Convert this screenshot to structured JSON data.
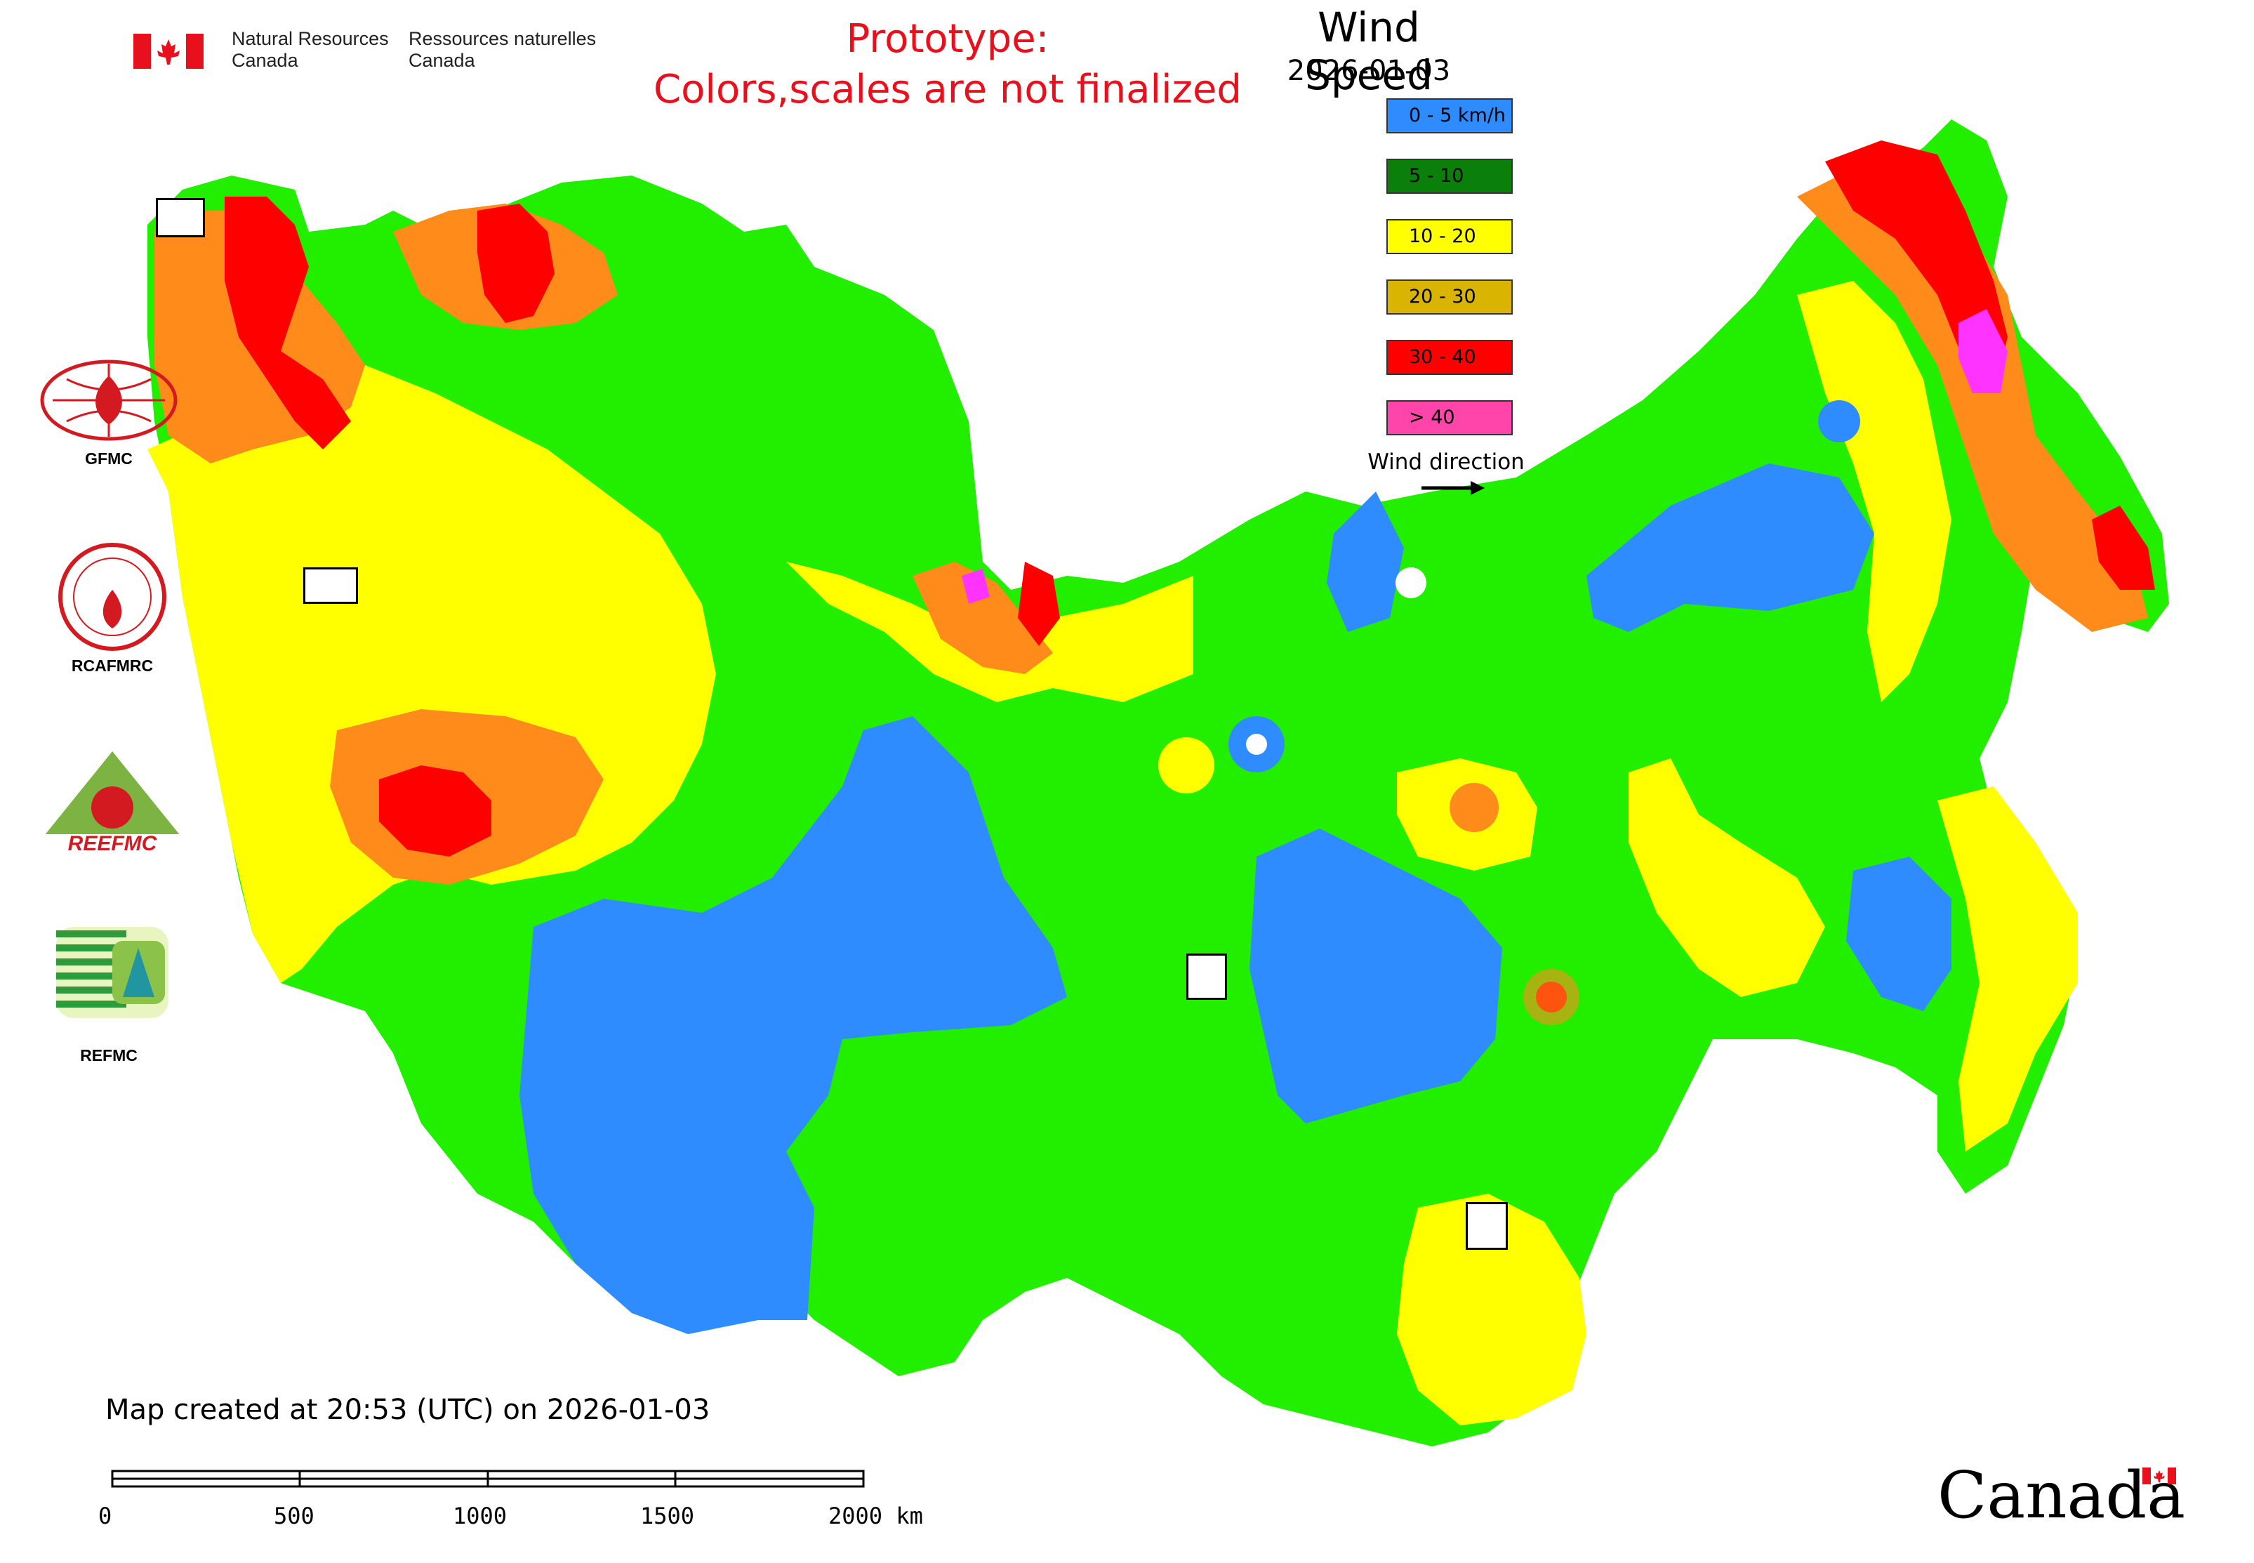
{
  "header": {
    "agency_en": [
      "Natural Resources",
      "Canada"
    ],
    "agency_fr": [
      "Ressources naturelles",
      "Canada"
    ],
    "prototype_line1": "Prototype:",
    "prototype_line2": "Colors,scales are not finalized"
  },
  "legend": {
    "title": "Wind Speed",
    "date": "2026-01-03",
    "classes": [
      {
        "label": "0 - 5 km/h",
        "color": "#2f8cff"
      },
      {
        "label": "5 - 10",
        "color": "#0a7f0a"
      },
      {
        "label": "10 - 20",
        "color": "#ffff00"
      },
      {
        "label": "20 - 30",
        "color": "#d9b400"
      },
      {
        "label": "30 - 40",
        "color": "#ff0000"
      },
      {
        "label": "> 40",
        "color": "#ff44aa"
      }
    ],
    "wind_direction_label": "Wind direction"
  },
  "organizations": [
    {
      "label": "GFMC"
    },
    {
      "label": "RCAFMRC"
    },
    {
      "label": "REEFMC"
    },
    {
      "label": "REFMC"
    }
  ],
  "footer": {
    "created": "Map created at 20:53 (UTC) on 2026-01-03",
    "scale_labels": [
      "0",
      "500",
      "1000",
      "1500",
      "2000 km"
    ],
    "wordmark": "Canada"
  },
  "map_colors": {
    "low": "#2f8cff",
    "mid": "#22ee00",
    "yellow": "#ffff00",
    "orange": "#ff8c1a",
    "red": "#ff0000",
    "magenta": "#ff33ff"
  }
}
